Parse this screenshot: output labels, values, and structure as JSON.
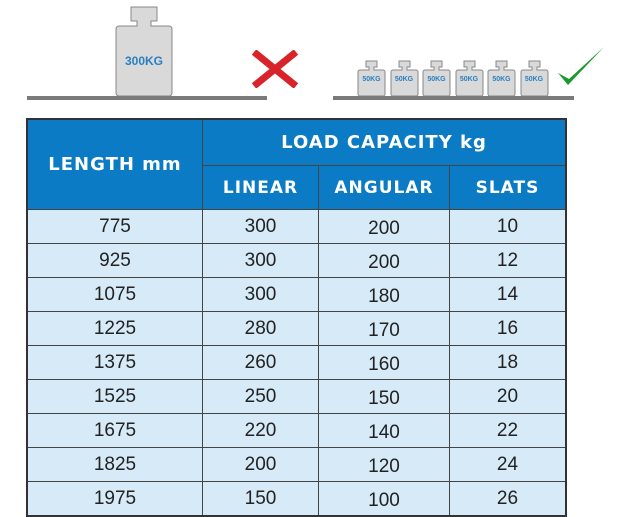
{
  "illustration": {
    "single_weight_label": "300KG",
    "small_weight_labels": [
      "50KG",
      "50KG",
      "50KG",
      "50KG",
      "50KG",
      "50KG"
    ],
    "wrong_icon": "red-x-icon",
    "right_icon": "green-check-icon",
    "colors": {
      "wrong": "#d9232a",
      "right": "#1a9a2e",
      "weight_text": "#2a7fc0"
    }
  },
  "table": {
    "header_length": "LENGTH mm",
    "header_group": "LOAD CAPACITY kg",
    "subheaders": [
      "LINEAR",
      "ANGULAR",
      "SLATS"
    ],
    "rows": [
      [
        "775",
        "300",
        "200",
        "10"
      ],
      [
        "925",
        "300",
        "200",
        "12"
      ],
      [
        "1075",
        "300",
        "180",
        "14"
      ],
      [
        "1225",
        "280",
        "170",
        "16"
      ],
      [
        "1375",
        "260",
        "160",
        "18"
      ],
      [
        "1525",
        "250",
        "150",
        "20"
      ],
      [
        "1675",
        "220",
        "140",
        "22"
      ],
      [
        "1825",
        "200",
        "120",
        "24"
      ],
      [
        "1975",
        "150",
        "100",
        "26"
      ]
    ],
    "colors": {
      "header_bg": "#0a7bc4",
      "row_bg": "#d6eaf8"
    }
  }
}
